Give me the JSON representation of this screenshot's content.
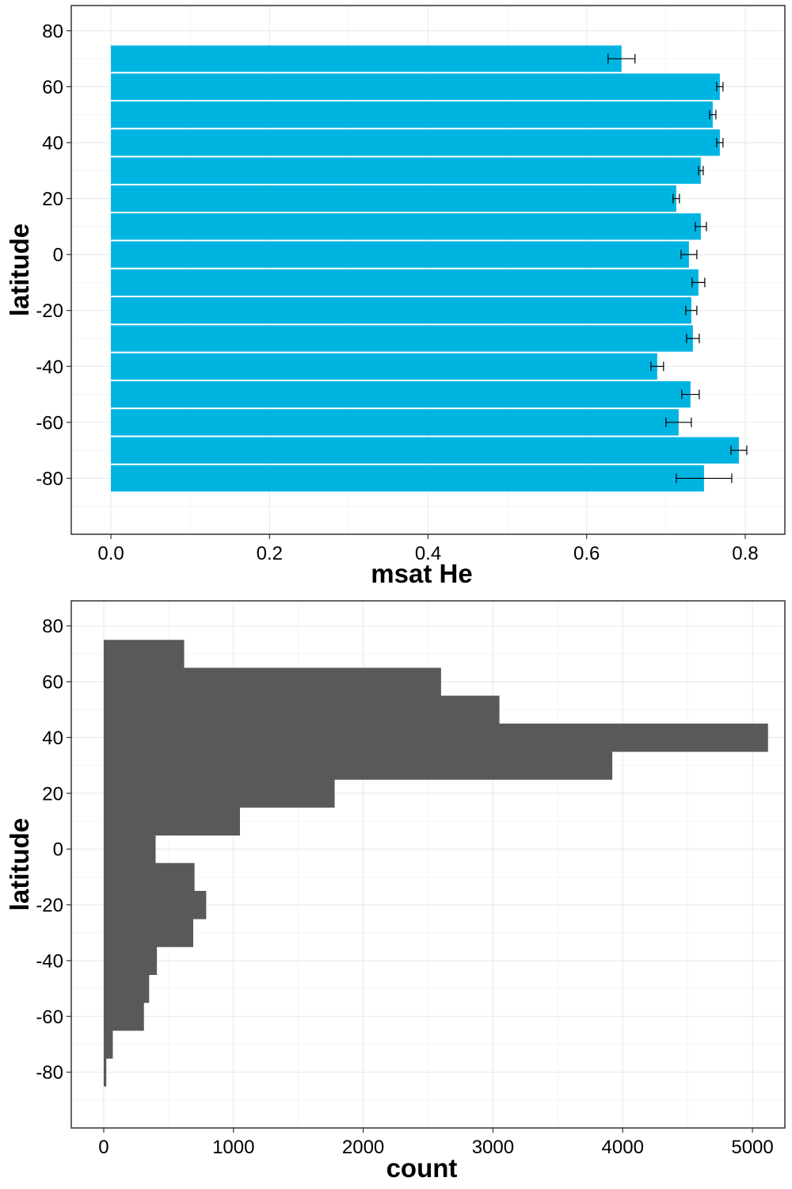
{
  "colors": {
    "bar_fill": "#00B4E2",
    "hist_fill": "#595959",
    "grid_major": "#EBEBEB",
    "grid_minor": "#F4F4F4",
    "panel_border": "#333333",
    "error_bar": "#000000"
  },
  "chart_data": [
    {
      "type": "bar",
      "orientation": "horizontal",
      "xlabel": "msat He",
      "ylabel": "latitude",
      "xlim": [
        -0.05,
        0.85
      ],
      "ylim": [
        -100,
        89
      ],
      "x_ticks": [
        0.0,
        0.2,
        0.4,
        0.6,
        0.8
      ],
      "x_tick_labels": [
        "0.0",
        "0.2",
        "0.4",
        "0.6",
        "0.8"
      ],
      "y_ticks": [
        80,
        60,
        40,
        20,
        0,
        -20,
        -40,
        -60,
        -80
      ],
      "y_tick_labels": [
        "80",
        "60",
        "40",
        "20",
        "0",
        "-20",
        "-40",
        "-60",
        "-80"
      ],
      "grid": true,
      "legend": "none",
      "bin_width": 10,
      "categories": [
        70,
        60,
        50,
        40,
        30,
        20,
        10,
        0,
        -10,
        -20,
        -30,
        -40,
        -50,
        -60,
        -70,
        -80
      ],
      "values": [
        0.644,
        0.768,
        0.759,
        0.768,
        0.744,
        0.713,
        0.744,
        0.729,
        0.741,
        0.732,
        0.734,
        0.689,
        0.731,
        0.716,
        0.792,
        0.748
      ],
      "error_low": [
        0.627,
        0.764,
        0.755,
        0.764,
        0.741,
        0.709,
        0.737,
        0.719,
        0.733,
        0.725,
        0.726,
        0.681,
        0.72,
        0.7,
        0.782,
        0.713
      ],
      "error_high": [
        0.661,
        0.772,
        0.763,
        0.772,
        0.747,
        0.717,
        0.751,
        0.739,
        0.749,
        0.739,
        0.742,
        0.697,
        0.742,
        0.732,
        0.802,
        0.783
      ]
    },
    {
      "type": "bar",
      "orientation": "horizontal",
      "xlabel": "count",
      "ylabel": "latitude",
      "xlim": [
        -250,
        5250
      ],
      "ylim": [
        -100,
        89
      ],
      "x_ticks": [
        0,
        1000,
        2000,
        3000,
        4000,
        5000
      ],
      "x_tick_labels": [
        "0",
        "1000",
        "2000",
        "3000",
        "4000",
        "5000"
      ],
      "y_ticks": [
        80,
        60,
        40,
        20,
        0,
        -20,
        -40,
        -60,
        -80
      ],
      "y_tick_labels": [
        "80",
        "60",
        "40",
        "20",
        "0",
        "-20",
        "-40",
        "-60",
        "-80"
      ],
      "grid": true,
      "legend": "none",
      "bin_width": 10,
      "categories": [
        70,
        60,
        50,
        40,
        30,
        20,
        10,
        0,
        -10,
        -20,
        -30,
        -40,
        -50,
        -60,
        -70,
        -80
      ],
      "values": [
        620,
        2600,
        3050,
        5120,
        3920,
        1780,
        1050,
        400,
        700,
        790,
        690,
        410,
        350,
        310,
        70,
        20
      ]
    }
  ]
}
